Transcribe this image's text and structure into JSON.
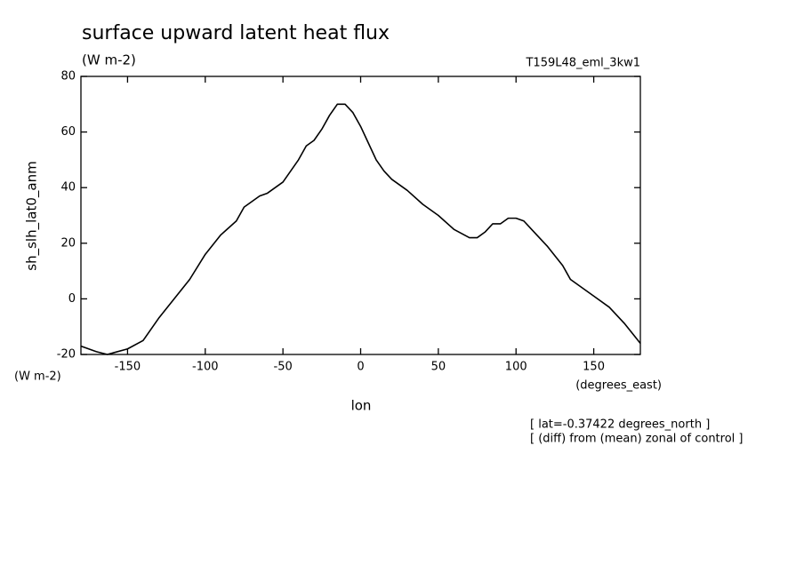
{
  "chart_data": {
    "type": "line",
    "title": "surface upward latent heat flux",
    "subtitle": "(W m-2)",
    "run_label": "T159L48_eml_3kw1",
    "y_label": "sh_slh_lat0_anm",
    "y_unit": "(W m-2)",
    "x_label": "lon",
    "x_unit": "(degrees_east)",
    "annotations": [
      "[ lat=-0.37422 degrees_north ]",
      "[ (diff) from (mean) zonal of control ]"
    ],
    "x": [
      -180,
      -170,
      -163,
      -150,
      -140,
      -130,
      -120,
      -110,
      -100,
      -90,
      -80,
      -75,
      -70,
      -65,
      -60,
      -55,
      -50,
      -45,
      -40,
      -35,
      -30,
      -25,
      -20,
      -15,
      -10,
      -5,
      0,
      5,
      10,
      15,
      20,
      30,
      40,
      50,
      60,
      70,
      75,
      80,
      85,
      90,
      95,
      100,
      105,
      110,
      120,
      130,
      135,
      140,
      150,
      160,
      170,
      180
    ],
    "series": [
      {
        "name": "sh_slh_lat0_anm",
        "color": "#000000",
        "values": [
          -17,
          -19,
          -20,
          -18,
          -15,
          -7,
          0,
          7,
          16,
          23,
          28,
          33,
          35,
          37,
          38,
          40,
          42,
          46,
          50,
          55,
          57,
          61,
          66,
          70,
          70,
          67,
          62,
          56,
          50,
          46,
          43,
          39,
          34,
          30,
          25,
          22,
          22,
          24,
          27,
          27,
          29,
          29,
          28,
          25,
          19,
          12,
          7,
          5,
          1,
          -3,
          -9,
          -16
        ]
      }
    ],
    "xlim": [
      -180,
      180
    ],
    "xticks": [
      -150,
      -100,
      -50,
      0,
      50,
      100,
      150
    ],
    "ylim": [
      -20,
      80
    ],
    "yticks": [
      -20,
      0,
      20,
      40,
      60,
      80
    ]
  }
}
